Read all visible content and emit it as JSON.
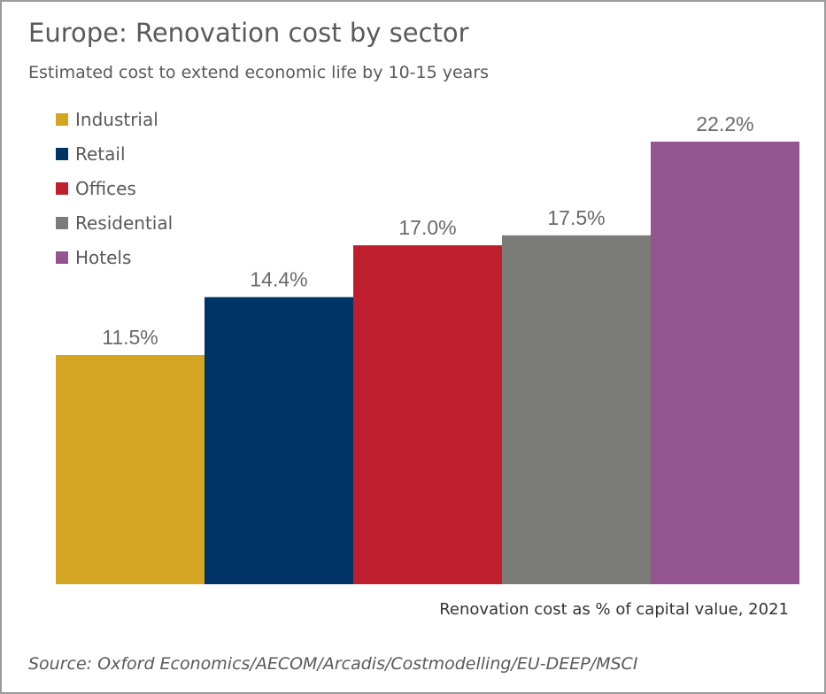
{
  "chart_data": {
    "type": "bar",
    "title": "Europe: Renovation cost by sector",
    "subtitle": "Estimated cost to extend economic life by 10-15 years",
    "xlabel": "Renovation cost as % of capital value, 2021",
    "ylabel": "",
    "ylim": [
      0,
      22.2
    ],
    "grid": false,
    "legend_position": "top-left",
    "categories": [
      "Industrial",
      "Retail",
      "Offices",
      "Residential",
      "Hotels"
    ],
    "values": [
      11.5,
      14.4,
      17.0,
      17.5,
      22.2
    ],
    "data_labels": [
      "11.5%",
      "14.4%",
      "17.0%",
      "17.5%",
      "22.2%"
    ],
    "colors": [
      "#d4a520",
      "#003366",
      "#be1e2d",
      "#7b7b77",
      "#93548f"
    ],
    "source": "Source: Oxford Economics/AECOM/Arcadis/Costmodelling/EU-DEEP/MSCI"
  }
}
